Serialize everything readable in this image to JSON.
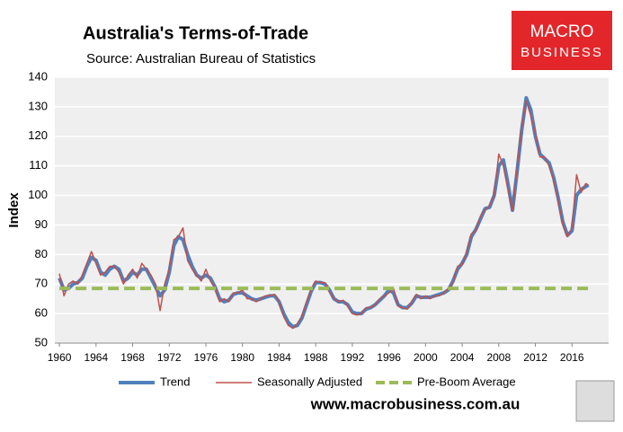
{
  "chart_data": {
    "type": "line",
    "title": "Australia's Terms-of-Trade",
    "subtitle": "Source: Australian Bureau of Statistics",
    "ylabel": "Index",
    "brand": [
      "MACRO",
      "BUSINESS"
    ],
    "website": "www.macrobusiness.com.au",
    "x": [
      1960,
      1960.5,
      1961,
      1961.5,
      1962,
      1962.5,
      1963,
      1963.5,
      1964,
      1964.5,
      1965,
      1965.5,
      1966,
      1966.5,
      1967,
      1967.5,
      1968,
      1968.5,
      1969,
      1969.5,
      1970,
      1970.5,
      1971,
      1971.5,
      1972,
      1972.5,
      1973,
      1973.5,
      1974,
      1974.5,
      1975,
      1975.5,
      1976,
      1976.5,
      1977,
      1977.5,
      1978,
      1978.5,
      1979,
      1979.5,
      1980,
      1980.5,
      1981,
      1981.5,
      1982,
      1982.5,
      1983,
      1983.5,
      1984,
      1984.5,
      1985,
      1985.5,
      1986,
      1986.5,
      1987,
      1987.5,
      1988,
      1988.5,
      1989,
      1989.5,
      1990,
      1990.5,
      1991,
      1991.5,
      1992,
      1992.5,
      1993,
      1993.5,
      1994,
      1994.5,
      1995,
      1995.5,
      1996,
      1996.5,
      1997,
      1997.5,
      1998,
      1998.5,
      1999,
      1999.5,
      2000,
      2000.5,
      2001,
      2001.5,
      2002,
      2002.5,
      2003,
      2003.5,
      2004,
      2004.5,
      2005,
      2005.5,
      2006,
      2006.5,
      2007,
      2007.5,
      2008,
      2008.5,
      2009,
      2009.5,
      2010,
      2010.5,
      2011,
      2011.5,
      2012,
      2012.5,
      2013,
      2013.5,
      2014,
      2014.5,
      2015,
      2015.5,
      2016,
      2016.5,
      2017,
      2017.5,
      2017.8
    ],
    "series": [
      {
        "name": "Trend",
        "color": "#4f81bd",
        "width": 4,
        "values": [
          72,
          68,
          68.5,
          70,
          70.5,
          72,
          76,
          79,
          78,
          74,
          73,
          75,
          76,
          75,
          71,
          72,
          74,
          73,
          75,
          75,
          72,
          69,
          66,
          68,
          74,
          83,
          86,
          85,
          80,
          76,
          73,
          72,
          73,
          72,
          69,
          65,
          64,
          64.5,
          66.5,
          67,
          67,
          66,
          65,
          64.5,
          65,
          65.5,
          66,
          66,
          64,
          60,
          57,
          55.5,
          56,
          58.5,
          63,
          67.5,
          70.5,
          70.5,
          70,
          68,
          65,
          64,
          64,
          63,
          60.5,
          60,
          60,
          61.5,
          62,
          63,
          64.5,
          66,
          68,
          67,
          63,
          62,
          62,
          63.5,
          66,
          65.5,
          65.5,
          65.5,
          66,
          66.5,
          67,
          68,
          71,
          75,
          77,
          80,
          86,
          88.5,
          92,
          95.5,
          96,
          100,
          110,
          112,
          104,
          95,
          108,
          122,
          133,
          129,
          120,
          114,
          112.5,
          111,
          106,
          99,
          91,
          86.5,
          88,
          100,
          102,
          103,
          103.5
        ]
      },
      {
        "name": "Seasonally Adjusted",
        "color": "#c0504d",
        "width": 1.5,
        "values": [
          73.5,
          66,
          70,
          71,
          70,
          73,
          77,
          81,
          77,
          73,
          74,
          76,
          76,
          74,
          70,
          73,
          75,
          72,
          77,
          75,
          73,
          70,
          61,
          70,
          75,
          85,
          86,
          89,
          78,
          75,
          73,
          71,
          75,
          71,
          69,
          64,
          65,
          64,
          67,
          67,
          68,
          65,
          65,
          64,
          65,
          66,
          66,
          66.5,
          64,
          59,
          56,
          55,
          56.5,
          59,
          64,
          68,
          71,
          70.5,
          70.5,
          67.5,
          65,
          64,
          64.5,
          62.5,
          60,
          59.5,
          60,
          62,
          62,
          63,
          65,
          66,
          67,
          68.5,
          62.5,
          62,
          61.5,
          64,
          66.5,
          65,
          66,
          65,
          66,
          66,
          67,
          68.5,
          70.5,
          76,
          76.5,
          81,
          87,
          88,
          93,
          95,
          96.5,
          100,
          114,
          110,
          102,
          95,
          109,
          123,
          132,
          127,
          121,
          113,
          113,
          110,
          105,
          98,
          90,
          86,
          89,
          107,
          101,
          104,
          103.5
        ]
      },
      {
        "name": "Pre-Boom Average",
        "color": "#9bbb59",
        "width": 4,
        "dashed": true,
        "x": [
          1960,
          2017.8
        ],
        "values": [
          68.5,
          68.5
        ]
      }
    ],
    "xlim": [
      1959.5,
      2020
    ],
    "xticks": [
      1960,
      1964,
      1968,
      1972,
      1976,
      1980,
      1984,
      1988,
      1992,
      1996,
      2000,
      2004,
      2008,
      2012,
      2016
    ],
    "ylim": [
      50,
      140
    ],
    "yticks": [
      50,
      60,
      70,
      80,
      90,
      100,
      110,
      120,
      130,
      140
    ],
    "grid": true,
    "legend": "bottom"
  }
}
